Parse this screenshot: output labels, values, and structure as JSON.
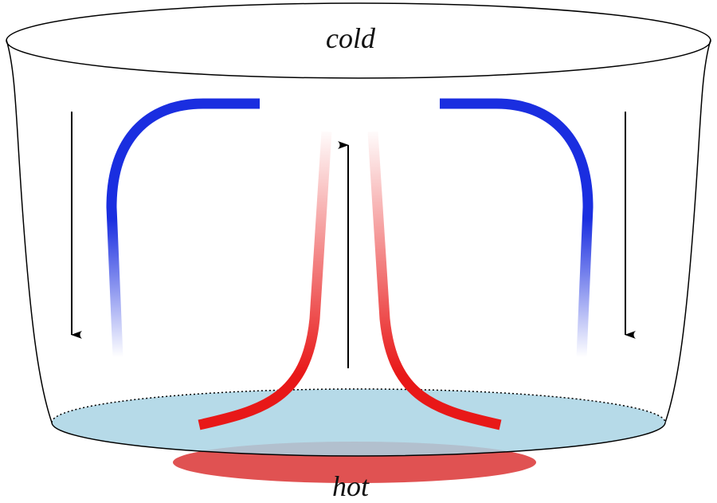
{
  "labels": {
    "top": "cold",
    "bottom": "hot"
  }
}
